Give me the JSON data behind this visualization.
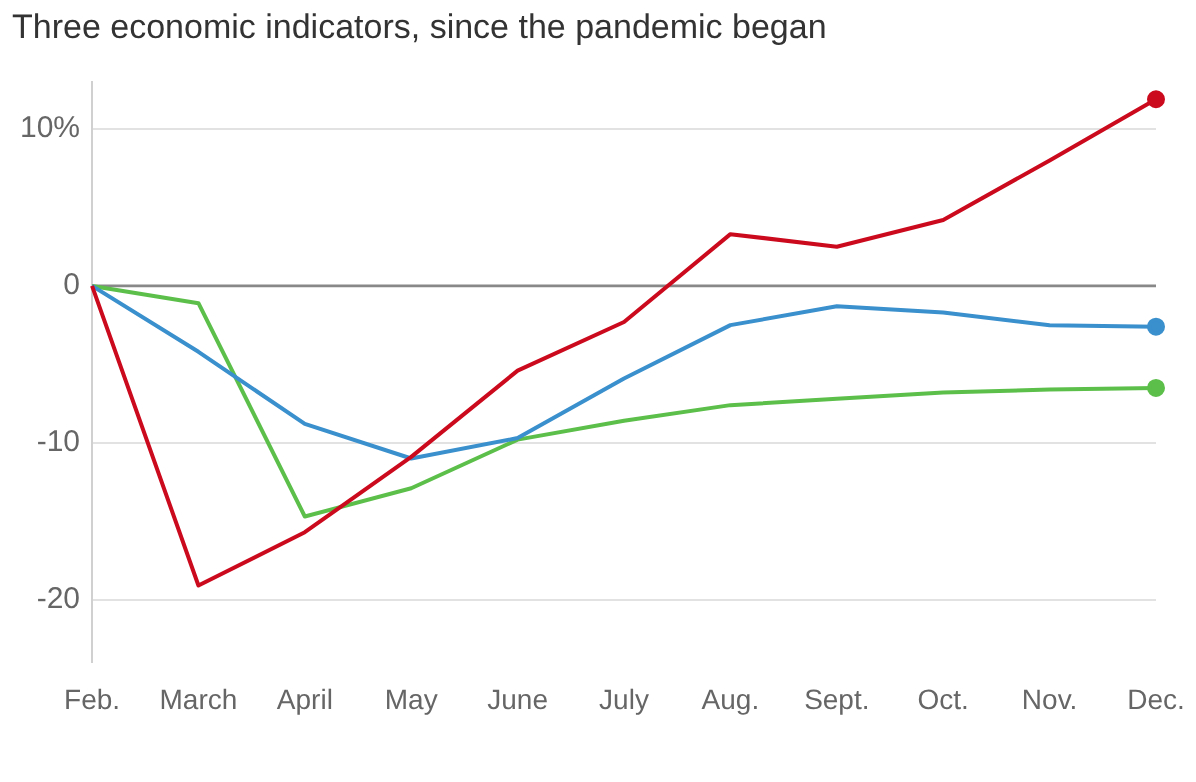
{
  "chart_data": {
    "type": "line",
    "title": "Three economic indicators, since the pandemic began",
    "categories": [
      "Feb.",
      "March",
      "April",
      "May",
      "June",
      "July",
      "Aug.",
      "Sept.",
      "Oct.",
      "Nov.",
      "Dec."
    ],
    "series": [
      {
        "color": "#cc0a1e",
        "values": [
          0,
          -19.1,
          -15.7,
          -10.9,
          -5.4,
          -2.3,
          3.3,
          2.5,
          4.2,
          8,
          11.9
        ]
      },
      {
        "color": "#3a8fcd",
        "values": [
          0,
          -4.2,
          -8.8,
          -11.0,
          -9.7,
          -5.9,
          -2.5,
          -1.3,
          -1.7,
          -2.5,
          -2.6
        ]
      },
      {
        "color": "#5cbf4a",
        "values": [
          0,
          -1.1,
          -14.7,
          -12.9,
          -9.8,
          -8.6,
          -7.6,
          -7.2,
          -6.8,
          -6.6,
          -6.5
        ]
      }
    ],
    "ylim": [
      -24,
      13
    ],
    "yticks": [
      {
        "value": 10,
        "label": "10%"
      },
      0,
      -10,
      -20
    ],
    "ref_lines": [
      {
        "axis": "y",
        "value": 0,
        "color": "#888888"
      }
    ],
    "grid": "y",
    "legend": false,
    "line_style": "solid"
  }
}
